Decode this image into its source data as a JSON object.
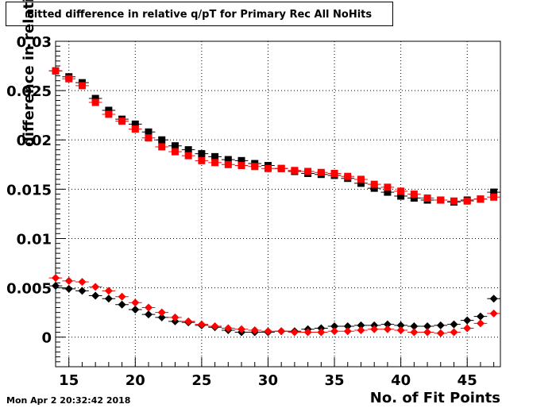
{
  "title": "Fitted difference in relative q/pT for Primary Rec All NoHits",
  "footer": "Mon Apr  2 20:32:42 2018",
  "chart_data": {
    "type": "scatter",
    "title": "Fitted difference in relative q/pT for Primary Rec All NoHits",
    "xlabel": "No. of Fit Points",
    "ylabel": "difference in relative q/pT",
    "xlim": [
      14,
      47.5
    ],
    "ylim": [
      -0.003,
      0.03
    ],
    "xticks": [
      15,
      20,
      25,
      30,
      35,
      40,
      45
    ],
    "yticks": [
      0,
      0.005,
      0.01,
      0.015,
      0.02,
      0.025,
      0.03
    ],
    "ytick_labels": [
      "0",
      "0.005",
      "0.01",
      "0.015",
      "0.02",
      "0.025",
      "0.03"
    ],
    "grid": true,
    "x": [
      14,
      15,
      16,
      17,
      18,
      19,
      20,
      21,
      22,
      23,
      24,
      25,
      26,
      27,
      28,
      29,
      30,
      31,
      32,
      33,
      34,
      35,
      36,
      37,
      38,
      39,
      40,
      41,
      42,
      43,
      44,
      45,
      46,
      47
    ],
    "series": [
      {
        "marker": "square",
        "color": "#000000",
        "values": [
          0.027,
          0.0264,
          0.0258,
          0.0242,
          0.023,
          0.0221,
          0.0216,
          0.0208,
          0.02,
          0.0194,
          0.019,
          0.0186,
          0.0183,
          0.018,
          0.0179,
          0.0176,
          0.0174,
          0.0171,
          0.0168,
          0.0166,
          0.0165,
          0.0164,
          0.0161,
          0.0156,
          0.0151,
          0.0147,
          0.0143,
          0.0141,
          0.0139,
          0.0139,
          0.0137,
          0.0139,
          0.014,
          0.0147
        ]
      },
      {
        "marker": "square",
        "color": "#ff0000",
        "values": [
          0.027,
          0.0262,
          0.0255,
          0.0238,
          0.0226,
          0.0219,
          0.0211,
          0.0202,
          0.0193,
          0.0188,
          0.0184,
          0.0179,
          0.0177,
          0.0175,
          0.0174,
          0.0173,
          0.0171,
          0.0171,
          0.0169,
          0.0168,
          0.0167,
          0.0166,
          0.0163,
          0.016,
          0.0155,
          0.0152,
          0.0148,
          0.0145,
          0.0141,
          0.0139,
          0.0138,
          0.0138,
          0.014,
          0.0142
        ]
      },
      {
        "marker": "diamond",
        "color": "#000000",
        "values": [
          0.0052,
          0.0049,
          0.0047,
          0.0042,
          0.0039,
          0.0033,
          0.0028,
          0.0023,
          0.002,
          0.0016,
          0.0015,
          0.0012,
          0.001,
          0.0007,
          0.0005,
          0.0005,
          0.0005,
          0.0006,
          0.0006,
          0.0008,
          0.0009,
          0.0011,
          0.0011,
          0.0012,
          0.0012,
          0.0013,
          0.0012,
          0.0011,
          0.0011,
          0.0012,
          0.0013,
          0.0017,
          0.0021,
          0.0039
        ]
      },
      {
        "marker": "diamond",
        "color": "#ff0000",
        "values": [
          0.006,
          0.0057,
          0.0056,
          0.0051,
          0.0047,
          0.0041,
          0.0035,
          0.003,
          0.0025,
          0.002,
          0.0016,
          0.0013,
          0.0011,
          0.0009,
          0.0008,
          0.0007,
          0.0006,
          0.0006,
          0.0005,
          0.0005,
          0.0005,
          0.0006,
          0.0006,
          0.0007,
          0.0008,
          0.0008,
          0.0007,
          0.0005,
          0.0005,
          0.0004,
          0.0005,
          0.0009,
          0.0014,
          0.0024
        ]
      }
    ]
  }
}
